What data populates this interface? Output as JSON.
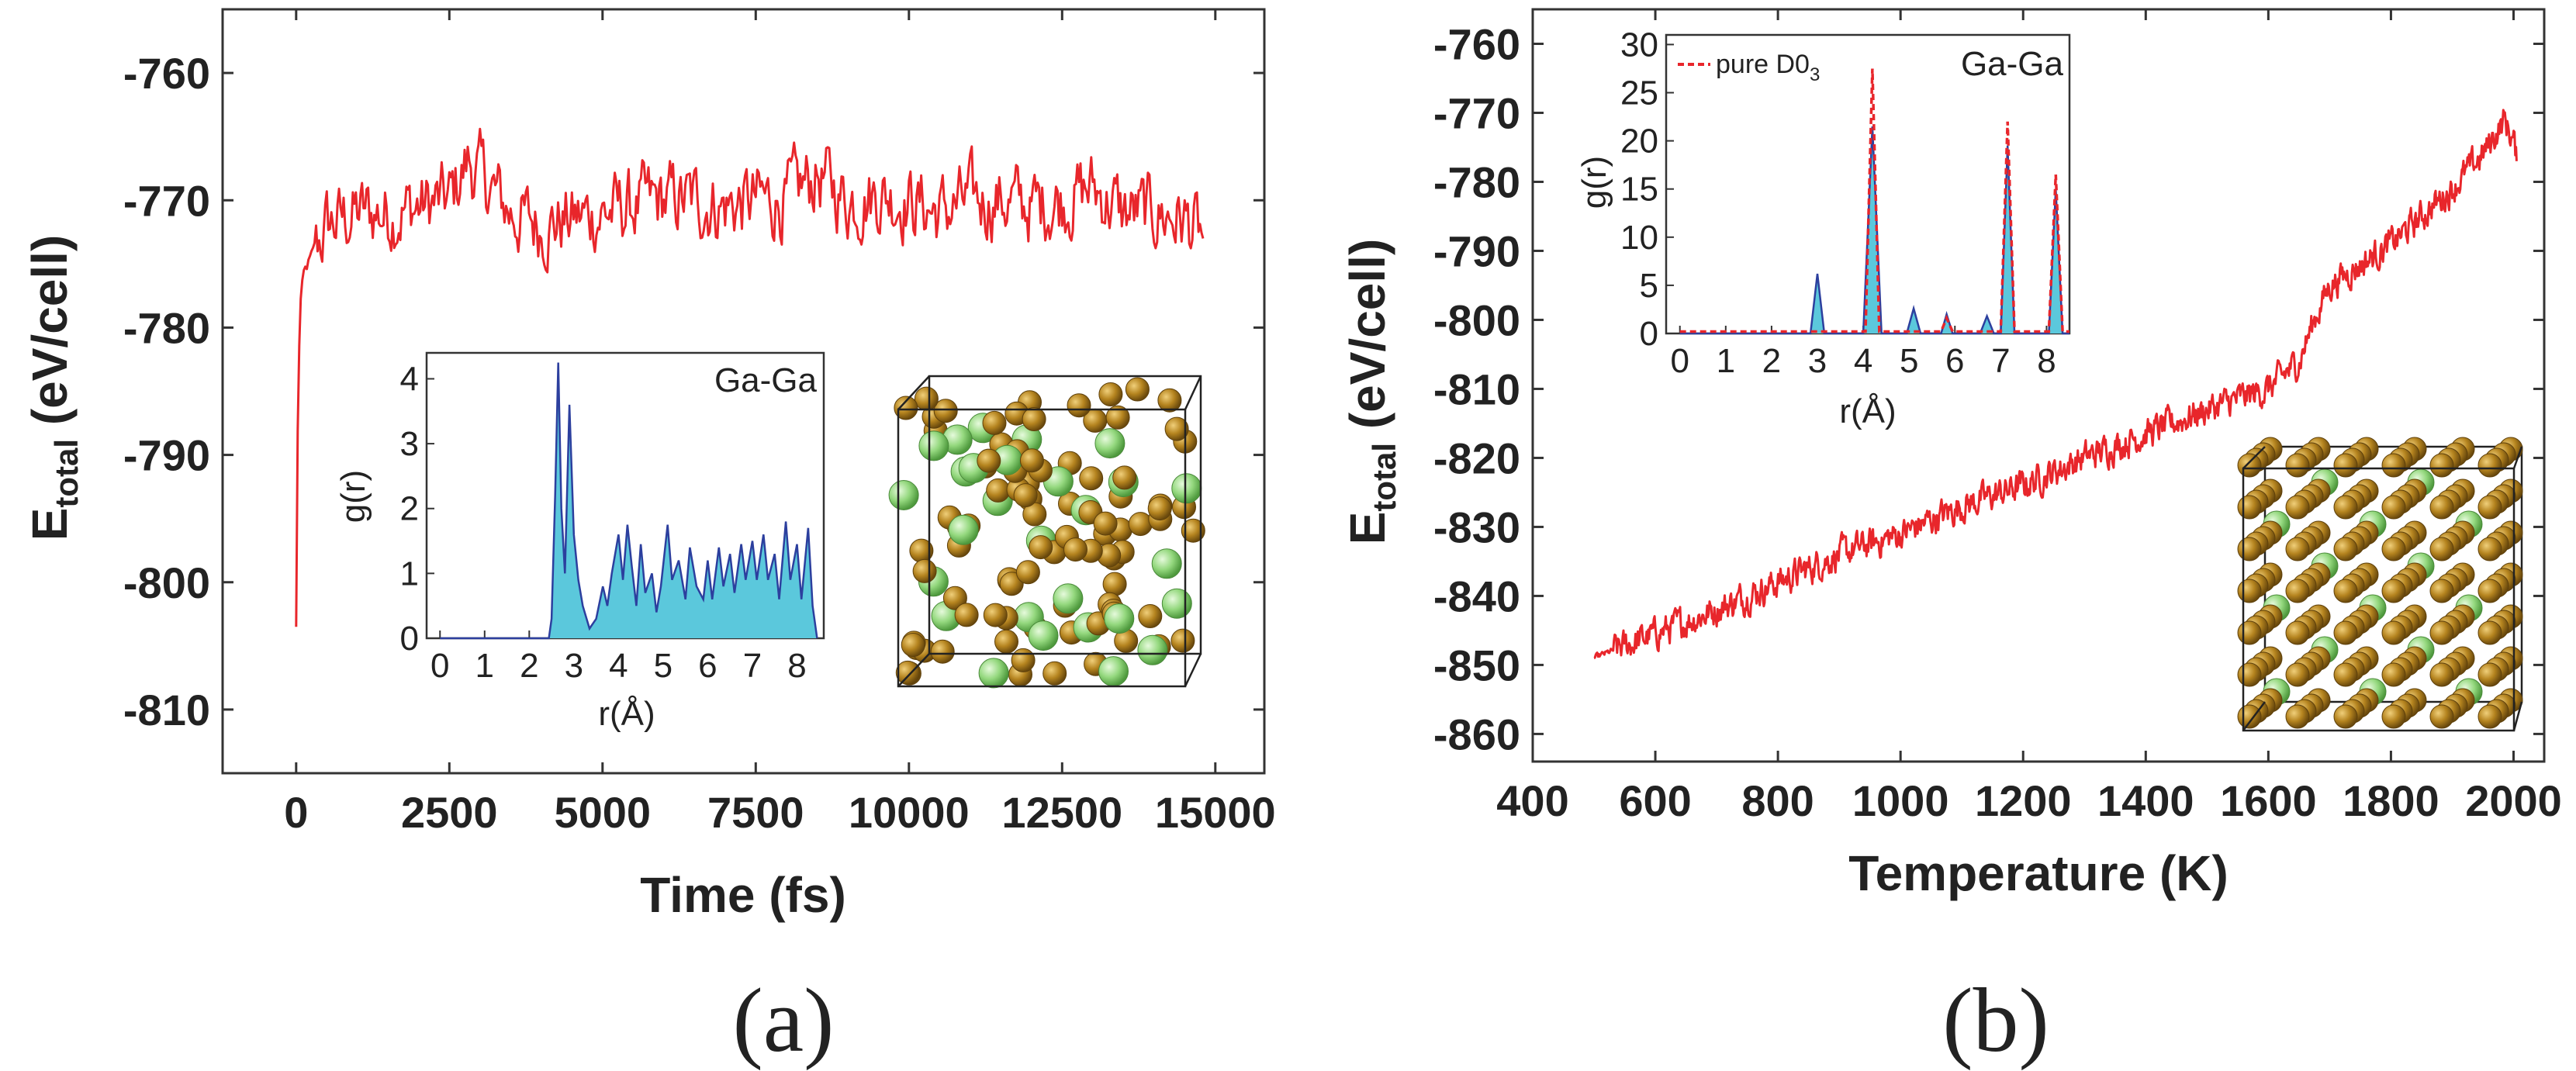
{
  "panels": [
    {
      "label": "(a)",
      "chart_data": {
        "type": "line",
        "xlabel": "Time (fs)",
        "ylabel_main": "E",
        "ylabel_sub": "total",
        "ylabel_unit": " (eV/cell)",
        "xlim": [
          -1200,
          15800
        ],
        "ylim": [
          -815,
          -755
        ],
        "xticks": [
          0,
          2500,
          5000,
          7500,
          10000,
          12500,
          15000
        ],
        "yticks": [
          -760,
          -770,
          -780,
          -790,
          -800,
          -810
        ],
        "series": [
          {
            "name": "E_total",
            "color": "#e8262b",
            "points": [
              [
                0,
                -803.5
              ],
              [
                20,
                -790
              ],
              [
                40,
                -783
              ],
              [
                70,
                -778
              ],
              [
                120,
                -776
              ],
              [
                200,
                -775
              ],
              [
                300,
                -774
              ],
              [
                500,
                -772
              ],
              [
                1000,
                -771
              ],
              [
                1500,
                -771
              ],
              [
                2000,
                -770.5
              ],
              [
                2500,
                -770
              ],
              [
                2800,
                -767
              ],
              [
                3000,
                -768
              ],
              [
                3500,
                -771
              ],
              [
                4000,
                -772
              ],
              [
                4500,
                -771.5
              ],
              [
                5000,
                -771
              ],
              [
                5500,
                -770.5
              ],
              [
                6000,
                -770
              ],
              [
                6500,
                -770
              ],
              [
                7000,
                -770.5
              ],
              [
                7500,
                -770
              ],
              [
                8000,
                -770
              ],
              [
                8500,
                -768
              ],
              [
                9000,
                -770
              ],
              [
                9500,
                -769.5
              ],
              [
                10000,
                -770
              ],
              [
                10500,
                -771
              ],
              [
                11000,
                -770
              ],
              [
                11500,
                -770
              ],
              [
                12000,
                -770.5
              ],
              [
                12500,
                -770
              ],
              [
                13000,
                -769
              ],
              [
                13500,
                -771
              ],
              [
                14000,
                -771
              ],
              [
                14500,
                -771.5
              ],
              [
                14800,
                -773
              ]
            ],
            "noise": 2.4,
            "step": 25
          }
        ],
        "inset": {
          "label": "Ga-Ga",
          "xlabel": "r(Å)",
          "ylabel": "g(r)",
          "xlim": [
            -0.3,
            8.6
          ],
          "ylim": [
            0,
            4.4
          ],
          "xticks": [
            0,
            1,
            2,
            3,
            4,
            5,
            6,
            7,
            8
          ],
          "yticks": [
            0,
            1,
            2,
            3,
            4
          ],
          "fill_color": "#5bc8dc",
          "line_color": "#2c3f9e",
          "gr": [
            [
              0,
              0
            ],
            [
              2.44,
              0
            ],
            [
              2.5,
              0.3
            ],
            [
              2.58,
              2.2
            ],
            [
              2.65,
              4.25
            ],
            [
              2.72,
              2.0
            ],
            [
              2.8,
              1.0
            ],
            [
              2.9,
              3.6
            ],
            [
              3.0,
              1.6
            ],
            [
              3.1,
              0.9
            ],
            [
              3.2,
              0.5
            ],
            [
              3.35,
              0.15
            ],
            [
              3.5,
              0.3
            ],
            [
              3.65,
              0.8
            ],
            [
              3.75,
              0.5
            ],
            [
              3.85,
              1.0
            ],
            [
              4.0,
              1.6
            ],
            [
              4.1,
              0.9
            ],
            [
              4.2,
              1.75
            ],
            [
              4.3,
              1.1
            ],
            [
              4.4,
              0.5
            ],
            [
              4.5,
              1.45
            ],
            [
              4.6,
              0.7
            ],
            [
              4.75,
              1.0
            ],
            [
              4.85,
              0.4
            ],
            [
              4.95,
              0.8
            ],
            [
              5.1,
              1.75
            ],
            [
              5.2,
              0.9
            ],
            [
              5.35,
              1.2
            ],
            [
              5.5,
              0.6
            ],
            [
              5.6,
              1.4
            ],
            [
              5.75,
              0.8
            ],
            [
              5.9,
              0.6
            ],
            [
              6.0,
              1.2
            ],
            [
              6.1,
              0.6
            ],
            [
              6.25,
              1.4
            ],
            [
              6.35,
              0.8
            ],
            [
              6.5,
              1.3
            ],
            [
              6.6,
              0.7
            ],
            [
              6.75,
              1.45
            ],
            [
              6.85,
              0.9
            ],
            [
              7.0,
              1.5
            ],
            [
              7.1,
              0.9
            ],
            [
              7.25,
              1.6
            ],
            [
              7.35,
              0.9
            ],
            [
              7.5,
              1.3
            ],
            [
              7.6,
              0.6
            ],
            [
              7.75,
              1.8
            ],
            [
              7.85,
              0.9
            ],
            [
              8.0,
              1.45
            ],
            [
              8.1,
              0.6
            ],
            [
              8.25,
              1.7
            ],
            [
              8.35,
              0.5
            ],
            [
              8.45,
              0.0
            ]
          ]
        }
      }
    },
    {
      "label": "(b)",
      "chart_data": {
        "type": "line",
        "xlabel": "Temperature (K)",
        "ylabel_main": "E",
        "ylabel_sub": "total",
        "ylabel_unit": " (eV/cell)",
        "xlim": [
          400,
          2050
        ],
        "ylim": [
          -864,
          -755
        ],
        "xticks": [
          400,
          600,
          800,
          1000,
          1200,
          1400,
          1600,
          1800,
          2000
        ],
        "yticks": [
          -760,
          -770,
          -780,
          -790,
          -800,
          -810,
          -820,
          -830,
          -840,
          -850,
          -860
        ],
        "series": [
          {
            "name": "E_total",
            "color": "#e8262b",
            "points": [
              [
                500,
                -849
              ],
              [
                600,
                -845.5
              ],
              [
                700,
                -842
              ],
              [
                800,
                -838
              ],
              [
                900,
                -834
              ],
              [
                1000,
                -831
              ],
              [
                1100,
                -827
              ],
              [
                1200,
                -824
              ],
              [
                1300,
                -820
              ],
              [
                1400,
                -816.5
              ],
              [
                1500,
                -813
              ],
              [
                1550,
                -811.5
              ],
              [
                1600,
                -810
              ],
              [
                1650,
                -806
              ],
              [
                1675,
                -800
              ],
              [
                1700,
                -795
              ],
              [
                1750,
                -792
              ],
              [
                1800,
                -789
              ],
              [
                1850,
                -785
              ],
              [
                1900,
                -781
              ],
              [
                1950,
                -776
              ],
              [
                1985,
                -771
              ],
              [
                2000,
                -774
              ],
              [
                2005,
                -777
              ]
            ],
            "noise": 1.8,
            "step": 1.3
          }
        ],
        "inset": {
          "label": "Ga-Ga",
          "legend": "pure D0",
          "legend_sub": "3",
          "xlabel": "r(Å)",
          "ylabel": "g(r)",
          "xlim": [
            -0.3,
            8.5
          ],
          "ylim": [
            0,
            31
          ],
          "xticks": [
            0,
            1,
            2,
            3,
            4,
            5,
            6,
            7,
            8
          ],
          "yticks": [
            0,
            5,
            10,
            15,
            20,
            25,
            30
          ],
          "fill_color": "#5bc8dc",
          "line_color": "#2c3f9e",
          "dash_color": "#e8262b",
          "gr": [
            [
              0,
              0
            ],
            [
              2.85,
              0
            ],
            [
              3.0,
              6.2
            ],
            [
              3.15,
              0
            ],
            [
              4.0,
              0
            ],
            [
              4.2,
              21.5
            ],
            [
              4.4,
              0
            ],
            [
              4.95,
              0
            ],
            [
              5.1,
              2.6
            ],
            [
              5.25,
              0
            ],
            [
              5.7,
              0
            ],
            [
              5.82,
              2.0
            ],
            [
              5.95,
              0
            ],
            [
              6.55,
              0
            ],
            [
              6.7,
              1.8
            ],
            [
              6.85,
              0
            ],
            [
              7.0,
              0
            ],
            [
              7.15,
              19.5
            ],
            [
              7.3,
              0
            ],
            [
              8.05,
              0
            ],
            [
              8.2,
              15.0
            ],
            [
              8.35,
              0
            ],
            [
              8.5,
              0
            ]
          ],
          "pure": [
            [
              0,
              0.2
            ],
            [
              4.05,
              0.2
            ],
            [
              4.2,
              27.5
            ],
            [
              4.35,
              0.2
            ],
            [
              5.7,
              0.2
            ],
            [
              5.82,
              1.6
            ],
            [
              5.95,
              0.2
            ],
            [
              7.0,
              0.2
            ],
            [
              7.15,
              22.0
            ],
            [
              7.3,
              0.2
            ],
            [
              8.05,
              0.2
            ],
            [
              8.2,
              16.5
            ],
            [
              8.35,
              0.2
            ],
            [
              8.5,
              0.2
            ]
          ]
        }
      }
    }
  ],
  "structure_colors": {
    "ga": "#a87a1c",
    "ga_light": "#d8a84a",
    "other": "#8ed27a",
    "other_light": "#c8efb8"
  }
}
